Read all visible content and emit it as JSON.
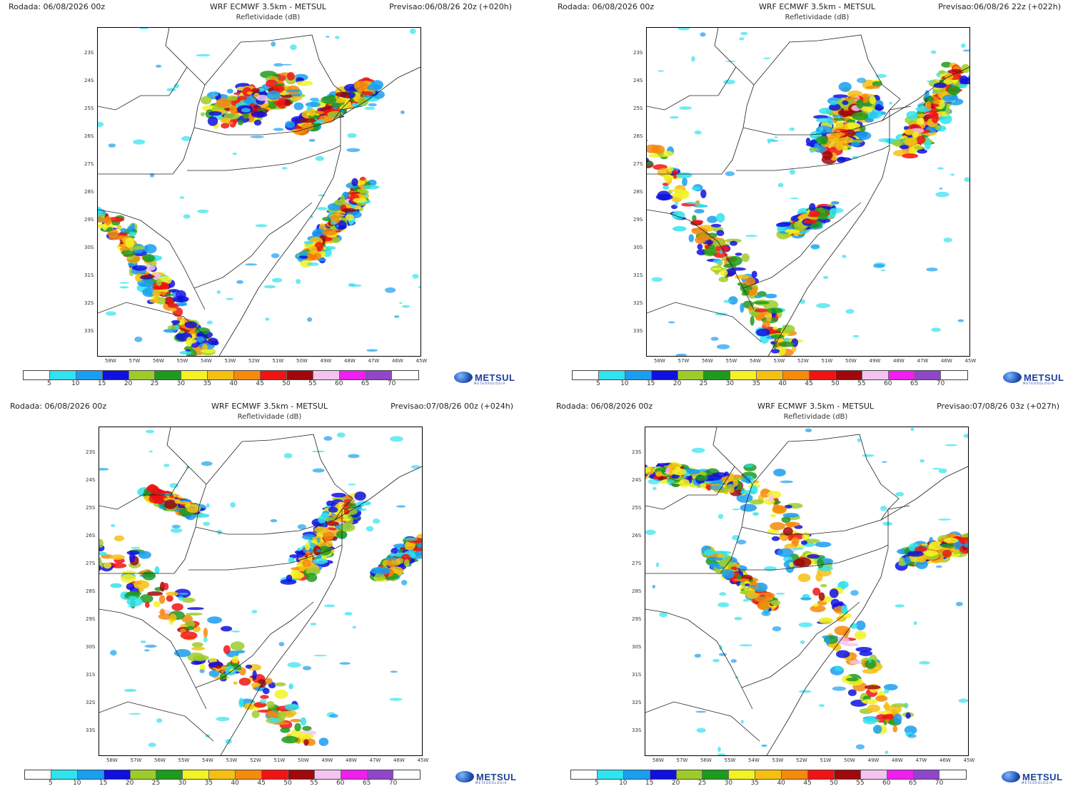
{
  "colors": {
    "scale": [
      "#ffffff",
      "#2fe3f0",
      "#1a9ef0",
      "#1010e0",
      "#9dcc2a",
      "#1e9a1e",
      "#f2f225",
      "#f5c012",
      "#f58a0c",
      "#f01414",
      "#a0080c",
      "#f5c3f0",
      "#f01ef0",
      "#9046c8",
      "#ffffff"
    ],
    "brand": "#1c3f9a"
  },
  "colorbar": {
    "ticks": [
      "5",
      "10",
      "15",
      "20",
      "25",
      "30",
      "35",
      "40",
      "45",
      "50",
      "55",
      "60",
      "65",
      "70"
    ]
  },
  "axes": {
    "lat_labels": [
      "23S",
      "24S",
      "25S",
      "26S",
      "27S",
      "28S",
      "29S",
      "30S",
      "31S",
      "32S",
      "33S"
    ],
    "lon_labels": [
      "58W",
      "57W",
      "56W",
      "55W",
      "54W",
      "53W",
      "52W",
      "51W",
      "50W",
      "49W",
      "48W",
      "47W",
      "46W",
      "45W"
    ]
  },
  "logo": {
    "name": "METSUL",
    "tagline": "METEOROLOGIA",
    "icon": "globe-icon"
  },
  "panels": [
    {
      "run": "Rodada: 06/08/2026 00z",
      "title": "WRF ECMWF 3.5km - METSUL",
      "subtitle": "Refletividade (dB)",
      "forecast": "Previsao:06/08/26 20z (+020h)"
    },
    {
      "run": "Rodada: 06/08/2026 00z",
      "title": "WRF ECMWF 3.5km - METSUL",
      "subtitle": "Refletividade (dB)",
      "forecast": "Previsao:06/08/26 22z (+022h)"
    },
    {
      "run": "Rodada: 06/08/2026 00z",
      "title": "WRF ECMWF 3.5km - METSUL",
      "subtitle": "Refletividade (dB)",
      "forecast": "Previsao:07/08/26 00z (+024h)"
    },
    {
      "run": "Rodada: 06/08/2026 00z",
      "title": "WRF ECMWF 3.5km - METSUL",
      "subtitle": "Refletividade (dB)",
      "forecast": "Previsao:07/08/26 03z (+027h)"
    }
  ]
}
